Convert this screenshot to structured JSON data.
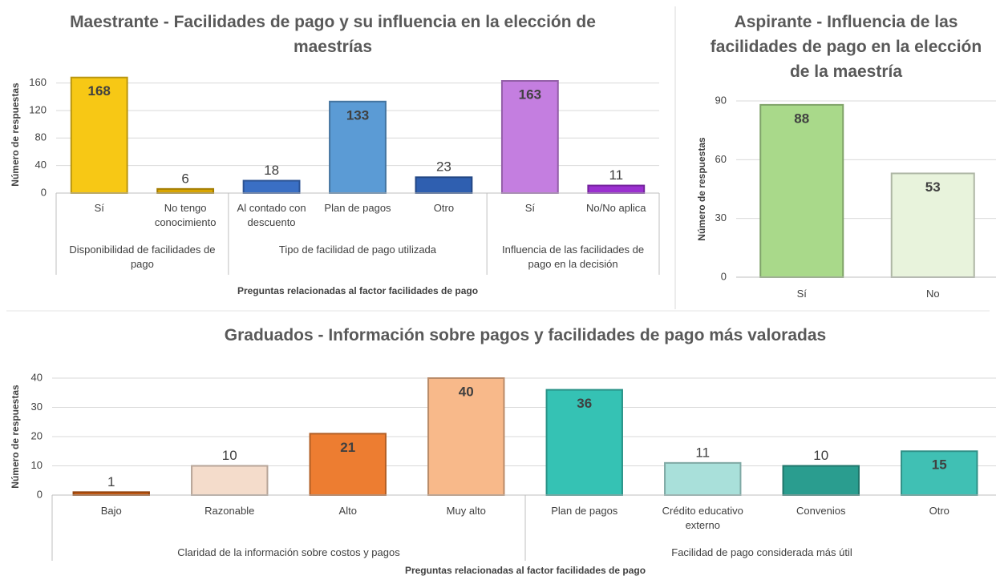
{
  "chart_data": [
    {
      "type": "bar",
      "title": "Maestrante - Facilidades de pago y su influencia en la elección de maestrías",
      "y_label": "Número de respuestas",
      "x_label": "Preguntas relacionadas al factor facilidades de pago",
      "ylim": [
        0,
        170
      ],
      "yticks": [
        0,
        40,
        80,
        120,
        160
      ],
      "grid": true,
      "groups": [
        {
          "label": "Disponibilidad de facilidades de pago",
          "categories": [
            "Sí",
            "No tengo conocimiento"
          ],
          "values": [
            168,
            6
          ],
          "colors": [
            "#f7c815",
            "#d9a500"
          ]
        },
        {
          "label": "Tipo de facilidad de pago utilizada",
          "categories": [
            "Al contado con descuento",
            "Plan de pagos",
            "Otro"
          ],
          "values": [
            18,
            133,
            23
          ],
          "colors": [
            "#3a6fc4",
            "#5b9bd5",
            "#2f5fb0"
          ]
        },
        {
          "label": "Influencia de las facilidades de pago en la decisión",
          "categories": [
            "Sí",
            "No/No aplica"
          ],
          "values": [
            163,
            11
          ],
          "colors": [
            "#c47ee0",
            "#9b30d0"
          ]
        }
      ]
    },
    {
      "type": "bar",
      "title": "Aspirante - Influencia de las facilidades de pago en la elección de la maestría",
      "y_label": "Número de respuestas",
      "ylim": [
        0,
        90
      ],
      "yticks": [
        0,
        30,
        60,
        90
      ],
      "grid": true,
      "categories": [
        "Sí",
        "No"
      ],
      "values": [
        88,
        53
      ],
      "colors": [
        "#a9d98a",
        "#e8f3dc"
      ]
    },
    {
      "type": "bar",
      "title": "Graduados - Información sobre pagos y facilidades de pago más valoradas",
      "y_label": "Número de respuestas",
      "x_label": "Preguntas relacionadas al factor facilidades de pago",
      "ylim": [
        0,
        40
      ],
      "yticks": [
        0,
        10,
        20,
        30,
        40
      ],
      "grid": true,
      "groups": [
        {
          "label": "Claridad de la información sobre costos y pagos",
          "categories": [
            "Bajo",
            "Razonable",
            "Alto",
            "Muy alto"
          ],
          "values": [
            1,
            10,
            21,
            40
          ],
          "colors": [
            "#c55a11",
            "#f4dccb",
            "#ed7d31",
            "#f8b98a"
          ]
        },
        {
          "label": "Facilidad de pago considerada más útil",
          "categories": [
            "Plan de pagos",
            "Crédito educativo externo",
            "Convenios",
            "Otro"
          ],
          "values": [
            36,
            11,
            10,
            15
          ],
          "colors": [
            "#35c2b4",
            "#a9e0da",
            "#2a9d8f",
            "#40c0b4"
          ]
        }
      ]
    }
  ]
}
